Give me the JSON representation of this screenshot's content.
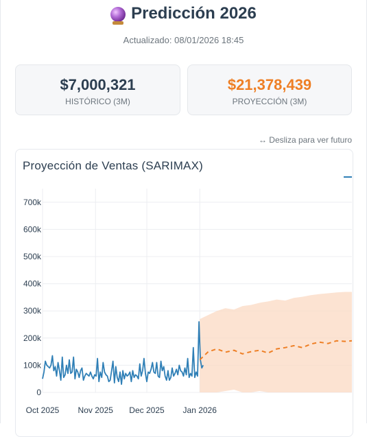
{
  "header": {
    "icon": "crystal-ball-icon",
    "title": "Predicción 2026",
    "updated": "Actualizado: 08/01/2026 18:45"
  },
  "cards": [
    {
      "value": "$7,000,321",
      "label": "HISTÓRICO (3M)",
      "color": "#2c3e50"
    },
    {
      "value": "$21,378,439",
      "label": "PROYECCIÓN (3M)",
      "color": "#ee7f25"
    }
  ],
  "hint": "↔ Desliza para ver futuro",
  "chart": {
    "title": "Proyección de Ventas (SARIMAX)"
  },
  "chart_data": {
    "type": "line",
    "title": "Proyección de Ventas (SARIMAX)",
    "y_ticks": [
      "0",
      "100k",
      "200k",
      "300k",
      "400k",
      "500k",
      "600k",
      "700k"
    ],
    "x_ticks": [
      "Oct 2025",
      "Nov 2025",
      "Dec 2025",
      "Jan 2026"
    ],
    "ylim": [
      0,
      750000
    ],
    "grid": true,
    "colors": {
      "history": "#2f7fb6",
      "forecast": "#ee7f25",
      "band": "#fbd9c3"
    },
    "series": [
      {
        "style": "solid",
        "x_start": "2025-10-01",
        "values": [
          50000,
          75000,
          115000,
          100000,
          95000,
          90000,
          100000,
          135000,
          80000,
          95000,
          60000,
          110000,
          80000,
          45000,
          130000,
          55000,
          65000,
          100000,
          70000,
          120000,
          70000,
          75000,
          130000,
          50000,
          85000,
          75000,
          55000,
          80000,
          90000,
          45000,
          60000,
          70000,
          65000,
          60000,
          75000,
          60000,
          50000,
          65000,
          60000,
          125000,
          40000,
          75000,
          55000,
          110000,
          75000,
          65000,
          60000,
          40000,
          45000,
          80000,
          115000,
          35000,
          95000,
          55000,
          40000,
          75000,
          30000,
          80000,
          50000,
          70000,
          60000,
          65000,
          75000,
          40000,
          80000,
          55000,
          65000,
          60000,
          50000,
          105000,
          60000,
          80000,
          125000,
          70000,
          40000,
          75000,
          70000,
          85000,
          110000,
          75000,
          70000,
          110000,
          60000,
          55000,
          115000,
          80000,
          95000,
          60000,
          45000,
          80000,
          45000,
          55000,
          90000,
          60000,
          70000,
          85000,
          65000,
          100000,
          80000,
          75000,
          60000,
          90000,
          65000,
          125000,
          55000,
          70000,
          60000,
          165000,
          55000,
          75000,
          60000,
          260000,
          120000,
          90000,
          100000
        ],
        "x_end": "2026-01-03"
      },
      {
        "style": "dashed",
        "x": [
          "2026-01-01",
          "2026-01-06",
          "2026-01-11",
          "2026-01-16",
          "2026-01-21",
          "2026-01-26",
          "2026-01-31",
          "2026-02-05",
          "2026-02-10",
          "2026-02-15",
          "2026-02-20",
          "2026-02-25",
          "2026-03-02",
          "2026-03-07",
          "2026-03-12",
          "2026-03-17",
          "2026-03-22",
          "2026-03-27",
          "2026-03-31"
        ],
        "values": [
          120000,
          150000,
          160000,
          148000,
          155000,
          142000,
          150000,
          155000,
          145000,
          160000,
          165000,
          172000,
          165000,
          178000,
          185000,
          180000,
          190000,
          188000,
          190000
        ],
        "upper": [
          270000,
          285000,
          300000,
          310000,
          305000,
          318000,
          322000,
          330000,
          335000,
          342000,
          338000,
          348000,
          352000,
          358000,
          362000,
          365000,
          368000,
          370000,
          370000
        ],
        "lower": [
          0,
          0,
          0,
          5000,
          10000,
          0,
          0,
          5000,
          0,
          0,
          0,
          0,
          0,
          0,
          0,
          0,
          0,
          0,
          0
        ]
      }
    ]
  }
}
